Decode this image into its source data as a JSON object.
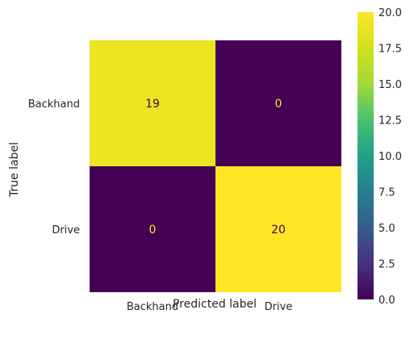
{
  "chart_data": {
    "type": "heatmap",
    "title": "",
    "xlabel": "Predicted label",
    "ylabel": "True label",
    "row_labels": [
      "Backhand",
      "Drive"
    ],
    "col_labels": [
      "Backhand",
      "Drive"
    ],
    "values": [
      [
        19,
        0
      ],
      [
        0,
        20
      ]
    ],
    "cell_texts": [
      [
        "19",
        "0"
      ],
      [
        "0",
        "20"
      ]
    ],
    "colormap": "viridis",
    "colorbar": {
      "min": 0,
      "max": 20,
      "ticks": [
        "0.0",
        "2.5",
        "5.0",
        "7.5",
        "10.0",
        "12.5",
        "15.0",
        "17.5",
        "20.0"
      ]
    },
    "grid": false,
    "colors": {
      "high_value_cell": "#e4e418",
      "max_value_cell": "#fde725",
      "low_value_cell": "#440154",
      "text_on_dark": "#fde725",
      "text_on_light": "#440154"
    }
  }
}
